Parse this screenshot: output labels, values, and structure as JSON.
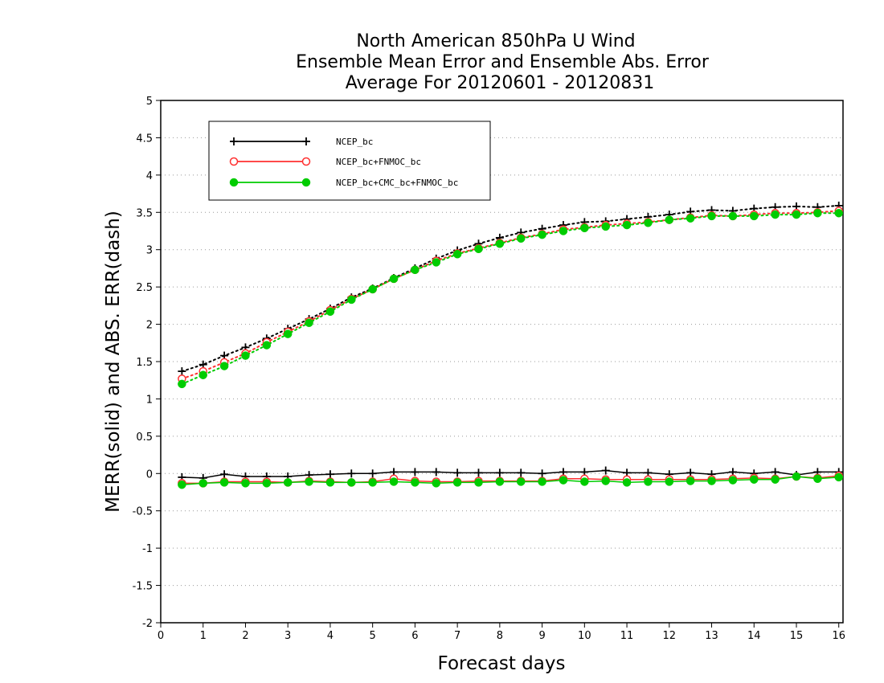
{
  "chart_data": {
    "type": "line",
    "title_lines": [
      "North American 850hPa U Wind",
      "Ensemble Mean Error and Ensemble Abs. Error",
      "Average For 20120601 - 20120831"
    ],
    "xlabel": "Forecast days",
    "ylabel": "MERR(solid) and ABS. ERR(dash)",
    "xlim": [
      0,
      16.1
    ],
    "ylim": [
      -2,
      5
    ],
    "x_ticks": [
      0,
      1,
      2,
      3,
      4,
      5,
      6,
      7,
      8,
      9,
      10,
      11,
      12,
      13,
      14,
      15,
      16
    ],
    "y_ticks": [
      -2,
      -1.5,
      -1,
      -0.5,
      0,
      0.5,
      1,
      1.5,
      2,
      2.5,
      3,
      3.5,
      4,
      4.5,
      5
    ],
    "grid": "horizontal dotted",
    "legend_position": "top-left",
    "x": [
      0.5,
      1,
      1.5,
      2,
      2.5,
      3,
      3.5,
      4,
      4.5,
      5,
      5.5,
      6,
      6.5,
      7,
      7.5,
      8,
      8.5,
      9,
      9.5,
      10,
      10.5,
      11,
      11.5,
      12,
      12.5,
      13,
      13.5,
      14,
      14.5,
      15,
      15.5,
      16
    ],
    "series": [
      {
        "name": "NCEP_bc",
        "color": "#000000",
        "marker": "plus",
        "abs_err": [
          1.37,
          1.46,
          1.58,
          1.69,
          1.81,
          1.94,
          2.07,
          2.21,
          2.36,
          2.48,
          2.62,
          2.75,
          2.88,
          2.99,
          3.08,
          3.16,
          3.23,
          3.28,
          3.33,
          3.37,
          3.38,
          3.41,
          3.44,
          3.47,
          3.51,
          3.53,
          3.52,
          3.55,
          3.57,
          3.58,
          3.57,
          3.59
        ],
        "mean_err": [
          -0.05,
          -0.06,
          -0.01,
          -0.04,
          -0.04,
          -0.04,
          -0.02,
          -0.01,
          0.0,
          0.0,
          0.02,
          0.02,
          0.02,
          0.01,
          0.01,
          0.01,
          0.01,
          0.0,
          0.02,
          0.02,
          0.04,
          0.01,
          0.01,
          -0.01,
          0.01,
          -0.01,
          0.02,
          0.0,
          0.02,
          -0.02,
          0.02,
          0.02
        ]
      },
      {
        "name": "NCEP_bc+FNMOC_bc",
        "color": "#ff3030",
        "marker": "open-circle",
        "abs_err": [
          1.27,
          1.37,
          1.49,
          1.61,
          1.76,
          1.9,
          2.04,
          2.19,
          2.34,
          2.47,
          2.61,
          2.73,
          2.85,
          2.95,
          3.02,
          3.09,
          3.16,
          3.21,
          3.27,
          3.3,
          3.33,
          3.35,
          3.37,
          3.4,
          3.43,
          3.46,
          3.45,
          3.47,
          3.49,
          3.49,
          3.5,
          3.52
        ],
        "mean_err": [
          -0.13,
          -0.13,
          -0.11,
          -0.11,
          -0.11,
          -0.12,
          -0.1,
          -0.11,
          -0.12,
          -0.11,
          -0.07,
          -0.1,
          -0.11,
          -0.11,
          -0.1,
          -0.1,
          -0.1,
          -0.1,
          -0.07,
          -0.07,
          -0.08,
          -0.08,
          -0.08,
          -0.08,
          -0.08,
          -0.08,
          -0.07,
          -0.06,
          -0.07,
          -0.04,
          -0.06,
          -0.03
        ]
      },
      {
        "name": "NCEP_bc+CMC_bc+FNMOC_bc",
        "color": "#00cc00",
        "marker": "filled-circle",
        "abs_err": [
          1.2,
          1.32,
          1.44,
          1.58,
          1.72,
          1.87,
          2.02,
          2.17,
          2.33,
          2.47,
          2.61,
          2.73,
          2.83,
          2.94,
          3.01,
          3.08,
          3.15,
          3.2,
          3.25,
          3.29,
          3.31,
          3.33,
          3.36,
          3.4,
          3.42,
          3.45,
          3.45,
          3.45,
          3.47,
          3.47,
          3.49,
          3.49
        ],
        "mean_err": [
          -0.15,
          -0.13,
          -0.12,
          -0.13,
          -0.13,
          -0.12,
          -0.11,
          -0.12,
          -0.12,
          -0.12,
          -0.11,
          -0.12,
          -0.13,
          -0.12,
          -0.12,
          -0.11,
          -0.11,
          -0.11,
          -0.09,
          -0.11,
          -0.1,
          -0.12,
          -0.11,
          -0.11,
          -0.1,
          -0.1,
          -0.09,
          -0.08,
          -0.08,
          -0.04,
          -0.07,
          -0.05
        ]
      }
    ]
  }
}
